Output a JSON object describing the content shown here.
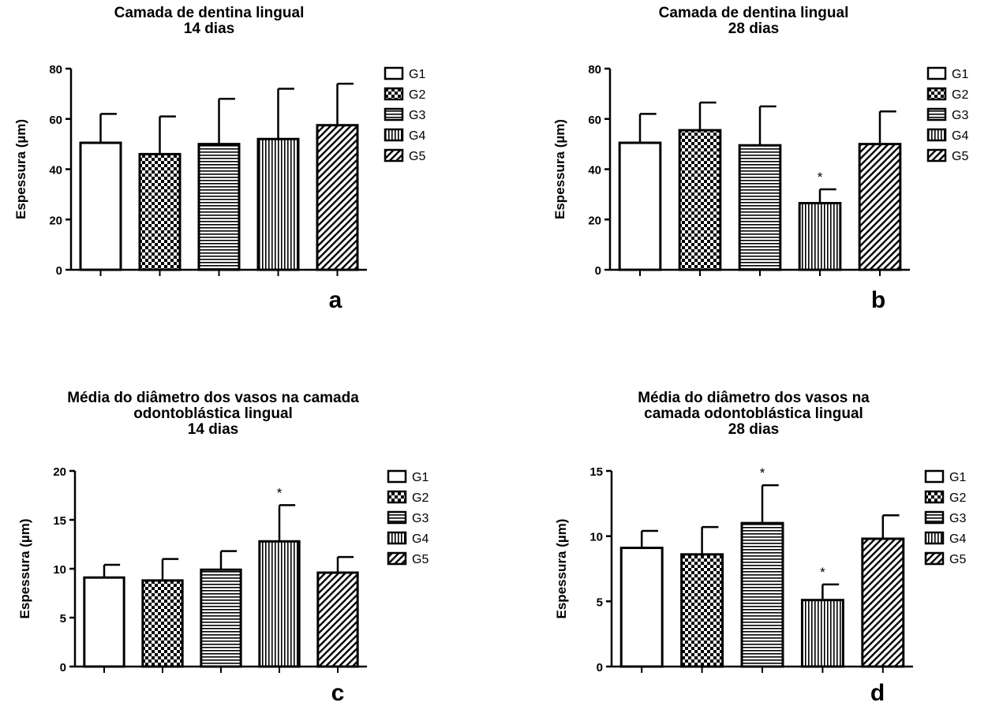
{
  "groups": [
    "G1",
    "G2",
    "G3",
    "G4",
    "G5"
  ],
  "patterns": [
    "solid-white",
    "checker",
    "horizontal-lines",
    "vertical-lines",
    "diagonal-lines"
  ],
  "colors": {
    "ink": "#000000",
    "fill": "#ffffff"
  },
  "chart_data": [
    {
      "panel": "a",
      "type": "bar",
      "title_lines": [
        "Camada de dentina lingual",
        "14 dias"
      ],
      "ylabel": "Espessura (µm)",
      "ylim": [
        0,
        80
      ],
      "yticks": [
        0,
        20,
        40,
        60,
        80
      ],
      "categories": [
        "G1",
        "G2",
        "G3",
        "G4",
        "G5"
      ],
      "values": [
        50.5,
        46,
        50,
        52,
        57.5
      ],
      "error_upper": [
        62,
        61,
        68,
        72,
        74
      ],
      "significance": [
        "",
        "",
        "",
        "",
        ""
      ],
      "legend": [
        "G1",
        "G2",
        "G3",
        "G4",
        "G5"
      ],
      "legend_position": "right"
    },
    {
      "panel": "b",
      "type": "bar",
      "title_lines": [
        "Camada de dentina lingual",
        "28 dias"
      ],
      "ylabel": "Espessura (µm)",
      "ylim": [
        0,
        80
      ],
      "yticks": [
        0,
        20,
        40,
        60,
        80
      ],
      "categories": [
        "G1",
        "G2",
        "G3",
        "G4",
        "G5"
      ],
      "values": [
        50.5,
        55.5,
        49.5,
        26.5,
        50
      ],
      "error_upper": [
        62,
        66.5,
        65,
        32,
        63
      ],
      "significance": [
        "",
        "",
        "",
        "*",
        ""
      ],
      "legend": [
        "G1",
        "G2",
        "G3",
        "G4",
        "G5"
      ],
      "legend_position": "right"
    },
    {
      "panel": "c",
      "type": "bar",
      "title_lines": [
        "Média do diâmetro dos vasos na camada",
        "odontoblástica lingual",
        "14 dias"
      ],
      "ylabel": "Espessura (µm)",
      "ylim": [
        0,
        20
      ],
      "yticks": [
        0,
        5,
        10,
        15,
        20
      ],
      "categories": [
        "G1",
        "G2",
        "G3",
        "G4",
        "G5"
      ],
      "values": [
        9.1,
        8.8,
        9.9,
        12.8,
        9.6
      ],
      "error_upper": [
        10.4,
        11,
        11.8,
        16.5,
        11.2
      ],
      "significance": [
        "",
        "",
        "",
        "*",
        ""
      ],
      "legend": [
        "G1",
        "G2",
        "G3",
        "G4",
        "G5"
      ],
      "legend_position": "right"
    },
    {
      "panel": "d",
      "type": "bar",
      "title_lines": [
        "Média do diâmetro dos vasos na",
        "camada odontoblástica lingual",
        "28 dias"
      ],
      "ylabel": "Espessura (µm)",
      "ylim": [
        0,
        15
      ],
      "yticks": [
        0,
        5,
        10,
        15
      ],
      "categories": [
        "G1",
        "G2",
        "G3",
        "G4",
        "G5"
      ],
      "values": [
        9.1,
        8.6,
        11,
        5.1,
        9.8
      ],
      "error_upper": [
        10.4,
        10.7,
        13.9,
        6.3,
        11.6
      ],
      "significance": [
        "",
        "",
        "*",
        "*",
        ""
      ],
      "legend": [
        "G1",
        "G2",
        "G3",
        "G4",
        "G5"
      ],
      "legend_position": "right"
    }
  ]
}
